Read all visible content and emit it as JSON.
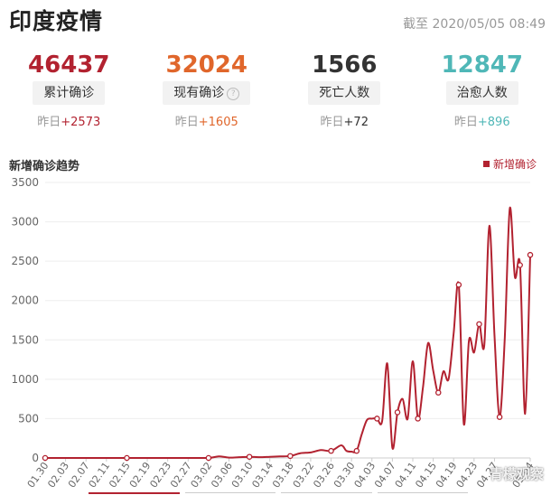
{
  "header": {
    "title": "印度疫情",
    "as_of": "截至 2020/05/05 08:49"
  },
  "stats": [
    {
      "value": "46437",
      "label": "累计确诊",
      "delta_prefix": "昨日",
      "delta": "+2573",
      "color": "#b22230",
      "delta_color": "#b22230",
      "help": false
    },
    {
      "value": "32024",
      "label": "现有确诊",
      "delta_prefix": "昨日",
      "delta": "+1605",
      "color": "#e0662b",
      "delta_color": "#e0662b",
      "help": true
    },
    {
      "value": "1566",
      "label": "死亡人数",
      "delta_prefix": "昨日",
      "delta": "+72",
      "color": "#333333",
      "delta_color": "#333333",
      "help": false
    },
    {
      "value": "12847",
      "label": "治愈人数",
      "delta_prefix": "昨日",
      "delta": "+896",
      "color": "#4fb7b7",
      "delta_color": "#4fb7b7",
      "help": false
    }
  ],
  "help_icon": "question-mark-icon",
  "watermark": "青檬观察",
  "chart_data": {
    "type": "line",
    "title": "新增确诊趋势",
    "legend": [
      "新增确诊"
    ],
    "legend_position": "top-right",
    "color": "#b22230",
    "ylim": [
      0,
      3500
    ],
    "yticks": [
      0,
      500,
      1000,
      1500,
      2000,
      2500,
      3000,
      3500
    ],
    "xtick_labels": [
      "01.30",
      "02.03",
      "02.07",
      "02.11",
      "02.15",
      "02.19",
      "02.23",
      "02.27",
      "03.02",
      "03.06",
      "03.10",
      "03.14",
      "03.18",
      "03.22",
      "03.26",
      "03.30",
      "04.03",
      "04.07",
      "04.11",
      "04.15",
      "04.19",
      "04.23",
      "04.27",
      "05.04"
    ],
    "series": [
      {
        "name": "新增确诊",
        "points": [
          [
            "01.30",
            0
          ],
          [
            "02.03",
            0
          ],
          [
            "02.07",
            0
          ],
          [
            "02.11",
            0
          ],
          [
            "02.15",
            0
          ],
          [
            "02.19",
            0
          ],
          [
            "02.23",
            0
          ],
          [
            "02.27",
            0
          ],
          [
            "03.02",
            0
          ],
          [
            "03.04",
            20
          ],
          [
            "03.06",
            5
          ],
          [
            "03.08",
            10
          ],
          [
            "03.10",
            15
          ],
          [
            "03.12",
            10
          ],
          [
            "03.14",
            15
          ],
          [
            "03.16",
            20
          ],
          [
            "03.18",
            25
          ],
          [
            "03.20",
            60
          ],
          [
            "03.22",
            70
          ],
          [
            "03.24",
            100
          ],
          [
            "03.26",
            90
          ],
          [
            "03.28",
            160
          ],
          [
            "03.29",
            90
          ],
          [
            "03.30",
            80
          ],
          [
            "03.31",
            90
          ],
          [
            "04.01",
            300
          ],
          [
            "04.02",
            480
          ],
          [
            "04.03",
            500
          ],
          [
            "04.04",
            500
          ],
          [
            "04.05",
            470
          ],
          [
            "04.06",
            1200
          ],
          [
            "04.07",
            130
          ],
          [
            "04.08",
            580
          ],
          [
            "04.09",
            750
          ],
          [
            "04.10",
            500
          ],
          [
            "04.11",
            1230
          ],
          [
            "04.12",
            500
          ],
          [
            "04.13",
            900
          ],
          [
            "04.14",
            1460
          ],
          [
            "04.15",
            1110
          ],
          [
            "04.16",
            830
          ],
          [
            "04.17",
            1100
          ],
          [
            "04.18",
            1000
          ],
          [
            "04.19",
            1580
          ],
          [
            "04.20",
            2200
          ],
          [
            "04.21",
            430
          ],
          [
            "04.22",
            1490
          ],
          [
            "04.23",
            1340
          ],
          [
            "04.24",
            1700
          ],
          [
            "04.25",
            1430
          ],
          [
            "04.26",
            2950
          ],
          [
            "04.27",
            1560
          ],
          [
            "04.28",
            520
          ],
          [
            "04.29",
            1500
          ],
          [
            "04.30",
            3170
          ],
          [
            "05.01",
            2300
          ],
          [
            "05.02",
            2450
          ],
          [
            "05.03",
            560
          ],
          [
            "05.04",
            2580
          ]
        ]
      }
    ]
  }
}
